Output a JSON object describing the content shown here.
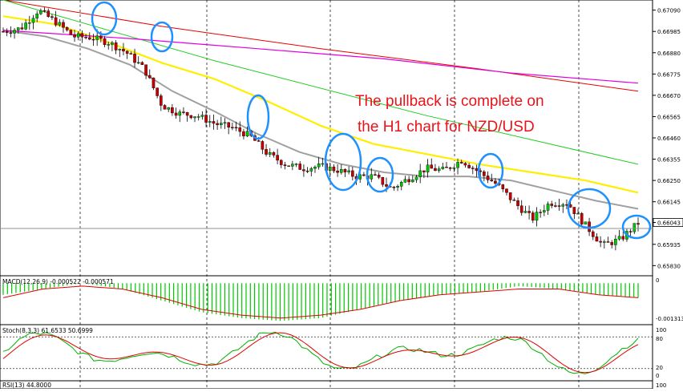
{
  "annotation": {
    "line1": "The pullback is complete on",
    "line2": "the H1 chart for NZD/USD",
    "color": "#e8141a"
  },
  "colors": {
    "bull": "#00c800",
    "bear": "#c80000",
    "sma_grey": "#a0a0a0",
    "sma_yellow": "#ffee00",
    "sma_red": "#e60000",
    "sma_green": "#22cc22",
    "sma_magenta": "#e000e0",
    "ellipse": "#1e90ff",
    "grid": "#000000",
    "current_price_line": "#909090",
    "macd_hist": "#00c800",
    "macd_signal": "#e00000",
    "stoch_main": "#00b000",
    "stoch_signal": "#e00000"
  },
  "chart_data": [
    {
      "type": "line",
      "subtype": "candlestick",
      "title": "",
      "price_axis": {
        "ticks": [
          "0.67090",
          "0.66985",
          "0.66880",
          "0.66775",
          "0.66670",
          "0.66565",
          "0.66460",
          "0.66355",
          "0.66250",
          "0.66145",
          "0.66043",
          "0.65935",
          "0.65830"
        ],
        "ylim": [
          0.6578,
          0.6714
        ],
        "current_price": "0.66043"
      },
      "candles_approx_closes": [
        0.66985,
        0.67,
        0.6709,
        0.6703,
        0.6696,
        0.66955,
        0.6693,
        0.6688,
        0.668,
        0.6662,
        0.6658,
        0.6657,
        0.6653,
        0.6651,
        0.6647,
        0.6638,
        0.6633,
        0.6631,
        0.6632,
        0.663,
        0.6627,
        0.6627,
        0.6621,
        0.6626,
        0.6631,
        0.663,
        0.6635,
        0.6629,
        0.6623,
        0.6614,
        0.6606,
        0.6614,
        0.6614,
        0.6603,
        0.6593,
        0.6596,
        0.6604
      ],
      "moving_averages": [
        {
          "color": "grey",
          "values": [
            0.6699,
            0.6696,
            0.669,
            0.6682,
            0.6669,
            0.6659,
            0.6648,
            0.6639,
            0.6633,
            0.6629,
            0.6627,
            0.6627,
            0.6625,
            0.662,
            0.6615,
            0.6611
          ]
        },
        {
          "color": "yellow",
          "values": [
            0.6706,
            0.6702,
            0.6693,
            0.6683,
            0.6675,
            0.6664,
            0.6652,
            0.6643,
            0.6638,
            0.6633,
            0.6629,
            0.6625,
            0.6619
          ]
        },
        {
          "color": "red",
          "values": [
            0.6714,
            0.6701,
            0.669,
            0.668,
            0.6669
          ]
        },
        {
          "color": "green",
          "values": [
            0.6714,
            0.6684,
            0.6657,
            0.6633
          ]
        },
        {
          "color": "magenta",
          "values": [
            0.6699,
            0.6695,
            0.669,
            0.6685,
            0.6678,
            0.6673
          ]
        }
      ],
      "annotations": [
        {
          "shape": "ellipse",
          "at": "local highs",
          "count": 8
        }
      ]
    },
    {
      "type": "bar",
      "name": "MACD",
      "label": "MACD(12,26,9) -0.000522 -0.000571",
      "ticks": [
        "0",
        "-0.001313"
      ],
      "ylim": [
        -0.0014,
        0.0002
      ]
    },
    {
      "type": "line",
      "name": "Stoch",
      "label": "Stoch(8,3,3) 61.6533 50.6999",
      "ticks": [
        "100",
        "80",
        "20",
        "0"
      ],
      "ylim": [
        0,
        100
      ]
    },
    {
      "type": "line",
      "name": "RSI",
      "label": "RSI(13) 44.8000",
      "ticks": [
        "100"
      ]
    }
  ]
}
